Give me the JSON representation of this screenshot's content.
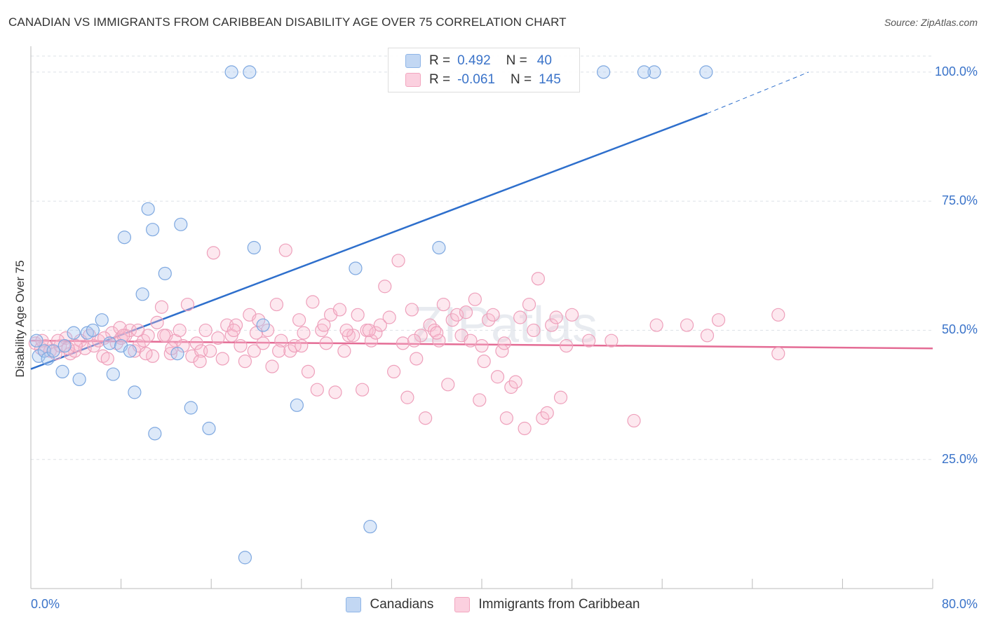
{
  "title": "CANADIAN VS IMMIGRANTS FROM CARIBBEAN DISABILITY AGE OVER 75 CORRELATION CHART",
  "source": "Source: ZipAtlas.com",
  "watermark": "ZIPatlas",
  "colors": {
    "blue": "#8fb6e8",
    "blue_line": "#2e6fcc",
    "pink": "#f2a6bf",
    "pink_line": "#e46c95",
    "tick": "#3a73c9"
  },
  "legend_top": {
    "rows": [
      {
        "r_label": "R =",
        "r_value": "0.492",
        "n_label": "N =",
        "n_value": "40"
      },
      {
        "r_label": "R =",
        "r_value": "-0.061",
        "n_label": "N =",
        "n_value": "145"
      }
    ]
  },
  "legend_bottom": {
    "items": [
      "Canadians",
      "Immigrants from Caribbean"
    ]
  },
  "chart_data": {
    "type": "scatter",
    "ylabel": "Disability Age Over 75",
    "xlim": [
      0,
      80
    ],
    "ylim": [
      0,
      105
    ],
    "x_tick_labels": [
      "0.0%",
      "80.0%"
    ],
    "y_ticks": [
      25,
      50,
      75,
      100
    ],
    "y_tick_labels": [
      "25.0%",
      "50.0%",
      "75.0%",
      "100.0%"
    ],
    "grid": true,
    "series": [
      {
        "name": "Canadians",
        "color": "#8fb6e8",
        "points": [
          [
            0.5,
            48
          ],
          [
            0.7,
            45
          ],
          [
            1.2,
            46
          ],
          [
            1.5,
            44.5
          ],
          [
            2,
            46
          ],
          [
            2.8,
            42
          ],
          [
            3,
            47
          ],
          [
            3.8,
            49.5
          ],
          [
            4.3,
            40.5
          ],
          [
            5,
            49.5
          ],
          [
            5.5,
            50
          ],
          [
            6.3,
            52
          ],
          [
            7,
            47.5
          ],
          [
            7.3,
            41.5
          ],
          [
            8,
            47
          ],
          [
            8.3,
            68
          ],
          [
            8.8,
            46
          ],
          [
            9.2,
            38
          ],
          [
            9.9,
            57
          ],
          [
            10.4,
            73.5
          ],
          [
            10.8,
            69.5
          ],
          [
            11,
            30
          ],
          [
            11.9,
            61
          ],
          [
            13,
            45.5
          ],
          [
            13.3,
            70.5
          ],
          [
            14.2,
            35
          ],
          [
            15.8,
            31
          ],
          [
            17.8,
            100
          ],
          [
            19.4,
            100
          ],
          [
            19,
            6
          ],
          [
            19.8,
            66
          ],
          [
            20.6,
            51
          ],
          [
            23.6,
            35.5
          ],
          [
            28.8,
            62
          ],
          [
            30.1,
            12
          ],
          [
            36.2,
            66
          ],
          [
            50.8,
            100
          ],
          [
            55.3,
            100
          ],
          [
            54.4,
            100
          ],
          [
            59.9,
            100
          ]
        ]
      },
      {
        "name": "Immigrants from Caribbean",
        "color": "#f2a6bf",
        "points": [
          [
            0.4,
            47.5
          ],
          [
            0.9,
            46.5
          ],
          [
            1.3,
            47
          ],
          [
            1.7,
            46
          ],
          [
            2.2,
            45.5
          ],
          [
            2.6,
            47
          ],
          [
            3.1,
            48.5
          ],
          [
            3.5,
            45.5
          ],
          [
            3.9,
            46
          ],
          [
            4.4,
            48
          ],
          [
            4.8,
            46.5
          ],
          [
            5.2,
            49
          ],
          [
            5.6,
            47
          ],
          [
            6,
            48
          ],
          [
            6.4,
            45
          ],
          [
            6.8,
            44.5
          ],
          [
            7.2,
            49.5
          ],
          [
            7.6,
            47.5
          ],
          [
            8,
            48.5
          ],
          [
            8.4,
            49
          ],
          [
            8.8,
            50
          ],
          [
            9.2,
            46
          ],
          [
            9.6,
            47
          ],
          [
            10,
            48
          ],
          [
            10.4,
            49
          ],
          [
            10.8,
            45
          ],
          [
            11.2,
            51.5
          ],
          [
            11.6,
            54.5
          ],
          [
            12,
            49
          ],
          [
            12.4,
            45.5
          ],
          [
            12.8,
            48
          ],
          [
            13.2,
            50
          ],
          [
            13.5,
            47
          ],
          [
            13.9,
            55
          ],
          [
            14.3,
            45
          ],
          [
            14.7,
            47.5
          ],
          [
            15.1,
            46
          ],
          [
            15.5,
            50
          ],
          [
            15.9,
            46
          ],
          [
            16.2,
            65
          ],
          [
            16.6,
            48.5
          ],
          [
            17,
            44.5
          ],
          [
            17.4,
            51
          ],
          [
            17.8,
            49
          ],
          [
            18.2,
            51
          ],
          [
            18.6,
            47
          ],
          [
            19,
            44
          ],
          [
            19.4,
            53
          ],
          [
            19.8,
            46
          ],
          [
            20.2,
            52
          ],
          [
            20.6,
            47.5
          ],
          [
            21,
            50
          ],
          [
            21.4,
            43
          ],
          [
            21.8,
            55
          ],
          [
            22.2,
            48
          ],
          [
            22.6,
            65.5
          ],
          [
            23,
            46
          ],
          [
            23.4,
            47
          ],
          [
            23.8,
            52
          ],
          [
            24.2,
            49.5
          ],
          [
            24.6,
            42
          ],
          [
            25,
            55.5
          ],
          [
            25.4,
            38.5
          ],
          [
            25.8,
            50
          ],
          [
            26.2,
            47.5
          ],
          [
            26.6,
            53
          ],
          [
            27,
            38
          ],
          [
            27.4,
            54
          ],
          [
            27.8,
            46
          ],
          [
            28.2,
            49
          ],
          [
            28.6,
            49
          ],
          [
            29,
            53
          ],
          [
            29.4,
            38.5
          ],
          [
            29.8,
            50
          ],
          [
            30.2,
            48
          ],
          [
            30.6,
            49.5
          ],
          [
            31,
            51
          ],
          [
            31.4,
            58.5
          ],
          [
            31.8,
            52.5
          ],
          [
            32.2,
            42
          ],
          [
            32.6,
            63.5
          ],
          [
            33,
            47.5
          ],
          [
            33.4,
            37
          ],
          [
            33.8,
            54
          ],
          [
            34.2,
            44.5
          ],
          [
            34.6,
            49
          ],
          [
            35,
            33
          ],
          [
            35.4,
            51
          ],
          [
            35.8,
            50
          ],
          [
            36.2,
            48
          ],
          [
            36.6,
            55
          ],
          [
            37,
            39.5
          ],
          [
            37.4,
            52
          ],
          [
            37.8,
            53
          ],
          [
            38.2,
            49
          ],
          [
            38.6,
            53.5
          ],
          [
            39,
            48
          ],
          [
            39.4,
            56
          ],
          [
            39.8,
            36.5
          ],
          [
            40.2,
            44
          ],
          [
            40.6,
            52
          ],
          [
            41,
            53
          ],
          [
            41.4,
            41
          ],
          [
            41.8,
            46
          ],
          [
            42.2,
            33
          ],
          [
            42.6,
            39
          ],
          [
            43,
            40
          ],
          [
            43.4,
            52.5
          ],
          [
            43.8,
            31
          ],
          [
            44.2,
            55
          ],
          [
            44.6,
            50
          ],
          [
            45,
            60
          ],
          [
            45.4,
            33
          ],
          [
            45.8,
            34
          ],
          [
            46.2,
            51
          ],
          [
            46.6,
            52.5
          ],
          [
            47,
            37
          ],
          [
            47.5,
            47
          ],
          [
            48,
            53
          ],
          [
            49.5,
            48
          ],
          [
            51.5,
            48
          ],
          [
            53.5,
            32.5
          ],
          [
            55.5,
            51
          ],
          [
            58.2,
            51
          ],
          [
            60,
            49
          ],
          [
            61,
            52
          ],
          [
            66.3,
            45.5
          ],
          [
            66.3,
            53
          ],
          [
            9.5,
            50
          ],
          [
            12.5,
            46.5
          ],
          [
            20,
            49.5
          ],
          [
            26,
            51
          ],
          [
            34,
            48
          ],
          [
            15,
            44
          ],
          [
            40,
            47
          ],
          [
            22,
            46
          ],
          [
            28,
            50
          ],
          [
            6.5,
            48.5
          ],
          [
            4,
            47
          ],
          [
            2.4,
            48
          ],
          [
            1,
            48
          ],
          [
            3.3,
            46.5
          ],
          [
            7.9,
            50.5
          ],
          [
            11.8,
            49
          ],
          [
            18,
            50
          ],
          [
            24,
            47
          ],
          [
            30,
            50
          ],
          [
            36,
            49.5
          ],
          [
            42,
            47.5
          ],
          [
            8.2,
            49
          ],
          [
            10.2,
            45.5
          ]
        ]
      }
    ],
    "trend_lines": [
      {
        "series": "Canadians",
        "x": [
          0,
          60
        ],
        "y": [
          42.5,
          92
        ],
        "dashed_x": [
          60,
          69
        ],
        "dashed_y": [
          92,
          100
        ]
      },
      {
        "series": "Immigrants from Caribbean",
        "x": [
          0,
          80
        ],
        "y": [
          48,
          46.5
        ]
      }
    ]
  }
}
